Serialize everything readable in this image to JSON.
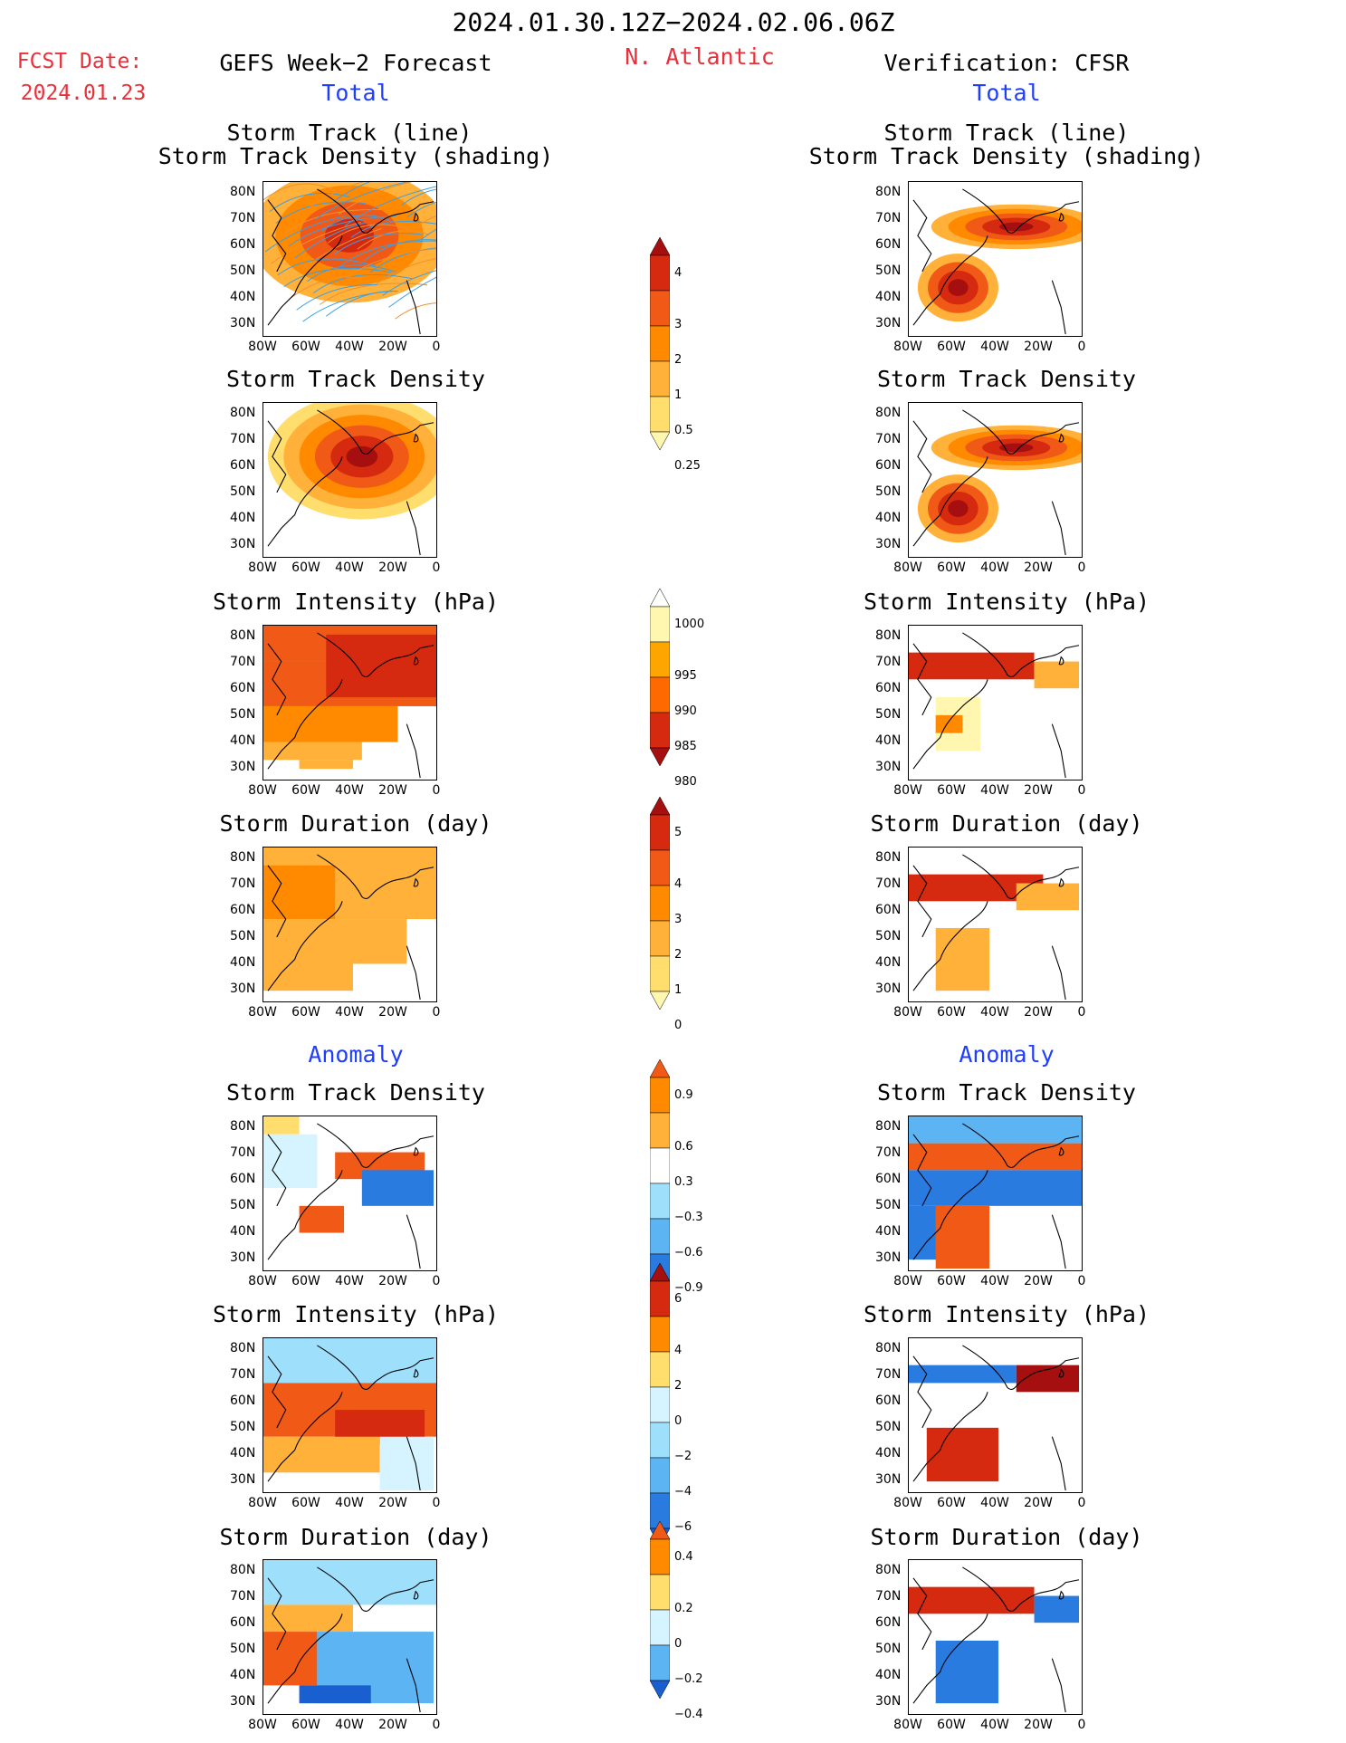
{
  "header": {
    "date_range": "2024.01.30.12Z−2024.02.06.06Z",
    "fcst_label": "FCST Date:",
    "fcst_date": "2024.01.23",
    "left_title": "GEFS Week−2 Forecast",
    "region": "N. Atlantic",
    "right_title": "Verification: CFSR",
    "total_left": "Total",
    "total_right": "Total",
    "anomaly_left": "Anomaly",
    "anomaly_right": "Anomaly"
  },
  "panels": {
    "track_line": "Storm Track (line)",
    "track_density_shading": "Storm Track Density (shading)",
    "track_density": "Storm Track Density",
    "intensity": "Storm Intensity (hPa)",
    "duration": "Storm Duration (day)"
  },
  "axes": {
    "lat": [
      "80N",
      "70N",
      "60N",
      "50N",
      "40N",
      "30N"
    ],
    "lon": [
      "80W",
      "60W",
      "40W",
      "20W",
      "0"
    ]
  },
  "colorbars": {
    "density": [
      "4",
      "3",
      "2",
      "1",
      "0.5",
      "0.25"
    ],
    "intensity": [
      "1000",
      "995",
      "990",
      "985",
      "980"
    ],
    "duration": [
      "5",
      "4",
      "3",
      "2",
      "1",
      "0"
    ],
    "density_anom": [
      "0.9",
      "0.6",
      "0.3",
      "−0.3",
      "−0.6",
      "−0.9"
    ],
    "intensity_anom": [
      "6",
      "4",
      "2",
      "0",
      "−2",
      "−4",
      "−6"
    ],
    "duration_anom": [
      "0.4",
      "0.2",
      "0",
      "−0.2",
      "−0.4"
    ]
  },
  "colors": {
    "warm": [
      "#fff7b0",
      "#ffde6e",
      "#ffb13a",
      "#ff8a00",
      "#f05a16",
      "#d62a10",
      "#a50f0f"
    ],
    "cool": [
      "#d6f4ff",
      "#9ee0fb",
      "#5cb4f2",
      "#2a7be0",
      "#1a5fd0"
    ],
    "title_red": "#e8303a",
    "title_blue": "#1f3dff"
  }
}
